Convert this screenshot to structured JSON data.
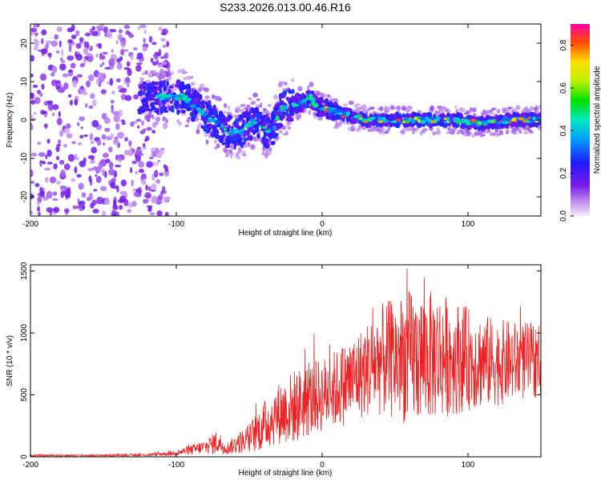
{
  "title": "S233.2026.013.00.46.R16",
  "chart_data": [
    {
      "type": "heatmap",
      "name": "spectrogram",
      "xlabel": "Height of straight line (km)",
      "ylabel": "Frequency (Hz)",
      "xlim": [
        -200,
        150
      ],
      "ylim": [
        -25,
        25
      ],
      "xticks": [
        -200,
        -100,
        0,
        100
      ],
      "yticks": [
        -20,
        -10,
        0,
        10,
        20
      ],
      "colorbar": {
        "label": "Normalized spectral amplitude",
        "range": [
          0,
          0.9
        ],
        "ticks": [
          "0.0",
          "0.2",
          "0.4",
          "0.6",
          "0.8"
        ]
      },
      "ridge": {
        "description_points_x": [
          -120,
          -105,
          -95,
          -85,
          -75,
          -65,
          -55,
          -50,
          -45,
          -38,
          -33,
          -28,
          -20,
          -12,
          -8,
          -5,
          0,
          10,
          20,
          30,
          50,
          70,
          90,
          110,
          130,
          150
        ],
        "description_points_freq": [
          6,
          6,
          6,
          3,
          0,
          -3,
          -3,
          -1,
          0,
          -3,
          -2,
          3,
          4,
          5,
          6,
          4,
          3,
          2,
          1,
          0,
          0,
          0,
          0,
          -1,
          0,
          0
        ]
      }
    },
    {
      "type": "line",
      "name": "snr",
      "xlabel": "Height of straight line (km)",
      "ylabel": "SNR (10 * v/v)",
      "xlim": [
        -200,
        150
      ],
      "ylim": [
        0,
        1550
      ],
      "xticks": [
        -200,
        -100,
        0,
        100
      ],
      "yticks": [
        0,
        500,
        1000,
        1500
      ],
      "color": "#ee2222",
      "envelope": {
        "x": [
          -200,
          -150,
          -120,
          -100,
          -80,
          -72,
          -65,
          -50,
          -40,
          -30,
          -20,
          -10,
          0,
          10,
          20,
          30,
          40,
          60,
          80,
          100,
          120,
          150
        ],
        "mean": [
          10,
          12,
          15,
          30,
          80,
          120,
          70,
          150,
          250,
          350,
          400,
          450,
          500,
          550,
          620,
          700,
          780,
          800,
          820,
          790,
          760,
          780
        ],
        "spread": [
          8,
          8,
          10,
          20,
          60,
          100,
          50,
          120,
          200,
          250,
          300,
          300,
          300,
          320,
          350,
          380,
          450,
          550,
          520,
          420,
          350,
          300
        ]
      }
    }
  ]
}
